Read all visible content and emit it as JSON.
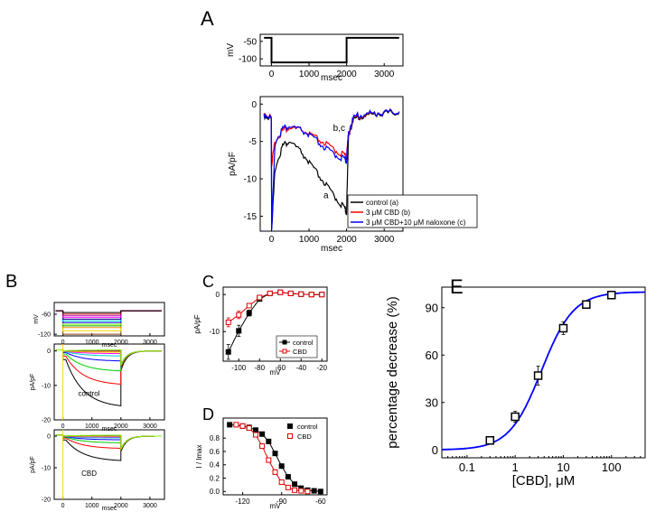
{
  "panel_letters": [
    "A",
    "B",
    "C",
    "D",
    "E"
  ],
  "chart_data": [
    {
      "id": "A-protocol",
      "type": "line",
      "ylabel": "mV",
      "xlabel": "msec",
      "xlim": [
        -300,
        3500
      ],
      "ylim": [
        -120,
        -30
      ],
      "xticks": [
        0,
        1000,
        2000,
        3000
      ],
      "yticks": [
        -50,
        -100
      ],
      "series": [
        {
          "color": "#000000",
          "x": [
            -200,
            0,
            0,
            2000,
            2000,
            3400
          ],
          "y": [
            -40,
            -40,
            -110,
            -110,
            -40,
            -40
          ]
        }
      ]
    },
    {
      "id": "A-currents",
      "type": "line",
      "ylabel": "pA/pF",
      "xlabel": "msec",
      "xlim": [
        -300,
        3500
      ],
      "ylim": [
        -17,
        1
      ],
      "xticks": [
        0,
        1000,
        2000,
        3000
      ],
      "yticks": [
        0,
        -5,
        -10,
        -15
      ],
      "legend": [
        "control (a)",
        "3 μM CBD (b)",
        "3 μM CBD+10 μM naloxone (c)"
      ],
      "legend_position": "bottom-right",
      "annotations": [
        "b,c",
        "a"
      ],
      "series": [
        {
          "name": "control (a)",
          "color": "#000000",
          "x": [
            -200,
            -5,
            5,
            100,
            300,
            500,
            800,
            1100,
            1400,
            1700,
            1950,
            2000,
            2050,
            2200,
            2500,
            2800,
            3100,
            3400
          ],
          "y": [
            -1.5,
            -2.0,
            -16.5,
            -8.5,
            -5.5,
            -5.0,
            -6.5,
            -8.5,
            -10.5,
            -12.5,
            -14.0,
            -14.5,
            -4.0,
            -2.0,
            -1.5,
            -1.3,
            -1.2,
            -1.1
          ]
        },
        {
          "name": "3 μM CBD (b)",
          "color": "#ff0000",
          "x": [
            -200,
            -5,
            5,
            100,
            300,
            500,
            800,
            1100,
            1400,
            1700,
            1950,
            2000,
            2050,
            2200,
            2500,
            2800,
            3100,
            3400
          ],
          "y": [
            -1.2,
            -1.8,
            -8.0,
            -5.0,
            -3.5,
            -3.2,
            -3.5,
            -4.3,
            -5.2,
            -6.2,
            -6.9,
            -7.1,
            -3.8,
            -1.8,
            -1.4,
            -1.2,
            -1.1,
            -1.0
          ]
        },
        {
          "name": "3 μM CBD+10 μM naloxone (c)",
          "color": "#0000ff",
          "x": [
            -200,
            -5,
            5,
            100,
            300,
            500,
            800,
            1100,
            1400,
            1700,
            1950,
            2000,
            2050,
            2200,
            2500,
            2800,
            3100,
            3400
          ],
          "y": [
            -1.3,
            -1.9,
            -16.5,
            -5.0,
            -3.2,
            -3.0,
            -3.5,
            -4.5,
            -5.8,
            -6.8,
            -7.4,
            -7.6,
            -3.6,
            -1.7,
            -1.3,
            -1.2,
            -1.1,
            -1.0
          ]
        }
      ]
    },
    {
      "id": "B-protocol",
      "type": "line",
      "ylabel": "mV",
      "xlabel": "msec",
      "xlim": [
        -300,
        3500
      ],
      "ylim": [
        -125,
        -25
      ],
      "xticks": [
        0,
        1000,
        2000,
        3000
      ],
      "yticks": [
        -60,
        -120
      ],
      "holding_mV": -50,
      "step_colors": [
        "#8b4513",
        "#ffd700",
        "#ff8c00",
        "#00aa00",
        "#7fff00",
        "#0000ff",
        "#00cccc",
        "#00008b",
        "#ff00ff",
        "#b000b0",
        "#cc0000",
        "#000000"
      ],
      "step_levels_mV": [
        -120,
        -110,
        -100,
        -95,
        -90,
        -85,
        -80,
        -75,
        -70,
        -65,
        -60,
        -55
      ]
    },
    {
      "id": "B-control",
      "type": "line",
      "ylabel": "pA/pF",
      "xlabel": "msec",
      "annotation": "control",
      "xlim": [
        -300,
        3500
      ],
      "ylim": [
        -20,
        2
      ],
      "xticks": [
        0,
        1000,
        2000,
        3000
      ],
      "yticks": [
        0,
        -10,
        -20
      ],
      "steady_state": [
        -16.5,
        -10.0,
        -6.0,
        -3.0,
        -1.5,
        -0.8,
        -0.4,
        -0.2,
        0.0,
        0.1,
        0.2,
        0.3
      ],
      "step_colors": [
        "#000000",
        "#ff0000",
        "#00cc00",
        "#0000ff",
        "#00cccc",
        "#ff00ff",
        "#ffd700",
        "#ff8c00",
        "#888888",
        "#b000b0",
        "#8b4513",
        "#7fff00"
      ]
    },
    {
      "id": "B-CBD",
      "type": "line",
      "ylabel": "pA/pF",
      "xlabel": "msec",
      "annotation": "CBD",
      "xlim": [
        -300,
        3500
      ],
      "ylim": [
        -20,
        2
      ],
      "xticks": [
        0,
        1000,
        2000,
        3000
      ],
      "yticks": [
        0,
        -10,
        -20
      ],
      "steady_state": [
        -8.0,
        -4.0,
        -2.2,
        -1.2,
        -0.6,
        -0.3,
        -0.1,
        0.0,
        0.1,
        0.2,
        0.2,
        0.3
      ],
      "step_colors": [
        "#000000",
        "#ff0000",
        "#00cc00",
        "#0000ff",
        "#00cccc",
        "#ff00ff",
        "#ffd700",
        "#ff8c00",
        "#888888",
        "#b000b0",
        "#8b4513",
        "#7fff00"
      ]
    },
    {
      "id": "C",
      "type": "scatter",
      "ylabel": "pA/pF",
      "xlabel": "mV",
      "xlim": [
        -115,
        -15
      ],
      "ylim": [
        -18,
        2
      ],
      "xticks": [
        -100,
        -80,
        -60,
        -40,
        -20
      ],
      "yticks": [
        0,
        -10
      ],
      "legend": [
        "control",
        "CBD"
      ],
      "legend_position": "center-right",
      "series": [
        {
          "name": "control",
          "color": "#000000",
          "marker": "square-filled",
          "x": [
            -110,
            -100,
            -90,
            -80,
            -70,
            -60,
            -50,
            -40,
            -30,
            -20
          ],
          "y": [
            -15.5,
            -9.8,
            -5.0,
            -1.2,
            0.3,
            0.6,
            0.3,
            0.1,
            0.0,
            0.0
          ],
          "err": [
            2.0,
            1.5,
            0.8,
            0.5,
            0.3,
            0.3,
            0.2,
            0.2,
            0.1,
            0.1
          ]
        },
        {
          "name": "CBD",
          "color": "#dd0000",
          "marker": "square-open",
          "x": [
            -110,
            -100,
            -90,
            -80,
            -70,
            -60,
            -50,
            -40,
            -30,
            -20
          ],
          "y": [
            -7.5,
            -5.5,
            -3.0,
            -0.8,
            0.3,
            0.6,
            0.3,
            0.1,
            0.0,
            0.0
          ],
          "err": [
            1.2,
            1.0,
            0.6,
            0.4,
            0.3,
            0.3,
            0.2,
            0.2,
            0.1,
            0.1
          ]
        }
      ]
    },
    {
      "id": "D",
      "type": "scatter",
      "ylabel": "I / Imax",
      "xlabel": "mV",
      "xlim": [
        -135,
        -55
      ],
      "ylim": [
        -0.05,
        1.1
      ],
      "xticks": [
        -120,
        -90,
        -60
      ],
      "yticks": [
        0.0,
        0.2,
        0.4,
        0.6,
        0.8
      ],
      "legend": [
        "control",
        "CBD"
      ],
      "legend_position": "top-right",
      "series": [
        {
          "name": "control",
          "color": "#000000",
          "marker": "square-filled",
          "x": [
            -130,
            -120,
            -115,
            -110,
            -105,
            -100,
            -95,
            -90,
            -85,
            -80,
            -75,
            -70,
            -65,
            -60
          ],
          "y": [
            1.0,
            0.98,
            0.96,
            0.92,
            0.86,
            0.75,
            0.57,
            0.38,
            0.22,
            0.11,
            0.05,
            0.02,
            0.01,
            0.0
          ],
          "err": [
            0.01,
            0.01,
            0.01,
            0.02,
            0.02,
            0.03,
            0.03,
            0.03,
            0.03,
            0.02,
            0.02,
            0.01,
            0.01,
            0.01
          ]
        },
        {
          "name": "CBD",
          "color": "#dd0000",
          "marker": "square-open",
          "x": [
            -125,
            -120,
            -115,
            -110,
            -105,
            -100,
            -95,
            -90,
            -85,
            -80,
            -75,
            -70
          ],
          "y": [
            1.0,
            0.98,
            0.95,
            0.85,
            0.68,
            0.47,
            0.29,
            0.14,
            0.06,
            0.02,
            0.01,
            0.0
          ],
          "err": [
            0.01,
            0.01,
            0.02,
            0.03,
            0.03,
            0.03,
            0.03,
            0.02,
            0.02,
            0.01,
            0.01,
            0.01
          ]
        }
      ]
    },
    {
      "id": "E",
      "type": "scatter",
      "ylabel": "percentage decrease (%)",
      "xlabel": "[CBD], μM",
      "xscale": "log",
      "xlim": [
        0.03,
        500
      ],
      "ylim": [
        -5,
        103
      ],
      "xticks": [
        0.1,
        1,
        10,
        100
      ],
      "xtick_labels": [
        "0.1",
        "1",
        "10",
        "100"
      ],
      "yticks": [
        0,
        30,
        60,
        90
      ],
      "fit": {
        "color": "#0000ff",
        "model": "hill",
        "top": 100,
        "ec50": 3.5,
        "n": 1.3
      },
      "series": [
        {
          "color": "#000000",
          "marker": "square-open",
          "x": [
            0.3,
            1,
            3,
            10,
            30,
            100
          ],
          "y": [
            6,
            21,
            47,
            77,
            92,
            98
          ],
          "err": [
            1.5,
            3.5,
            6,
            4,
            2.5,
            1.5
          ]
        }
      ]
    }
  ]
}
